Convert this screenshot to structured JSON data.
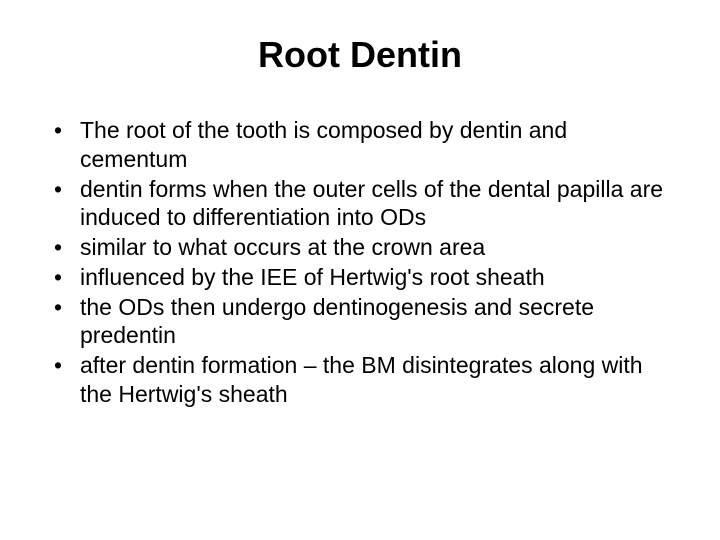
{
  "slide": {
    "title": "Root Dentin",
    "bullets": [
      "The root of the tooth is composed by dentin and cementum",
      "dentin forms when the outer cells of the dental papilla are induced to differentiation into ODs",
      "similar to what occurs at the crown area",
      "influenced by the IEE of Hertwig's root sheath",
      "the ODs then undergo dentinogenesis and secrete predentin",
      "after dentin formation – the BM disintegrates along with the Hertwig's sheath"
    ]
  },
  "style": {
    "background_color": "#ffffff",
    "text_color": "#000000",
    "title_fontsize": 36,
    "title_fontweight": "bold",
    "body_fontsize": 23,
    "font_family": "Arial, Helvetica, sans-serif",
    "bullet_marker": "•"
  }
}
